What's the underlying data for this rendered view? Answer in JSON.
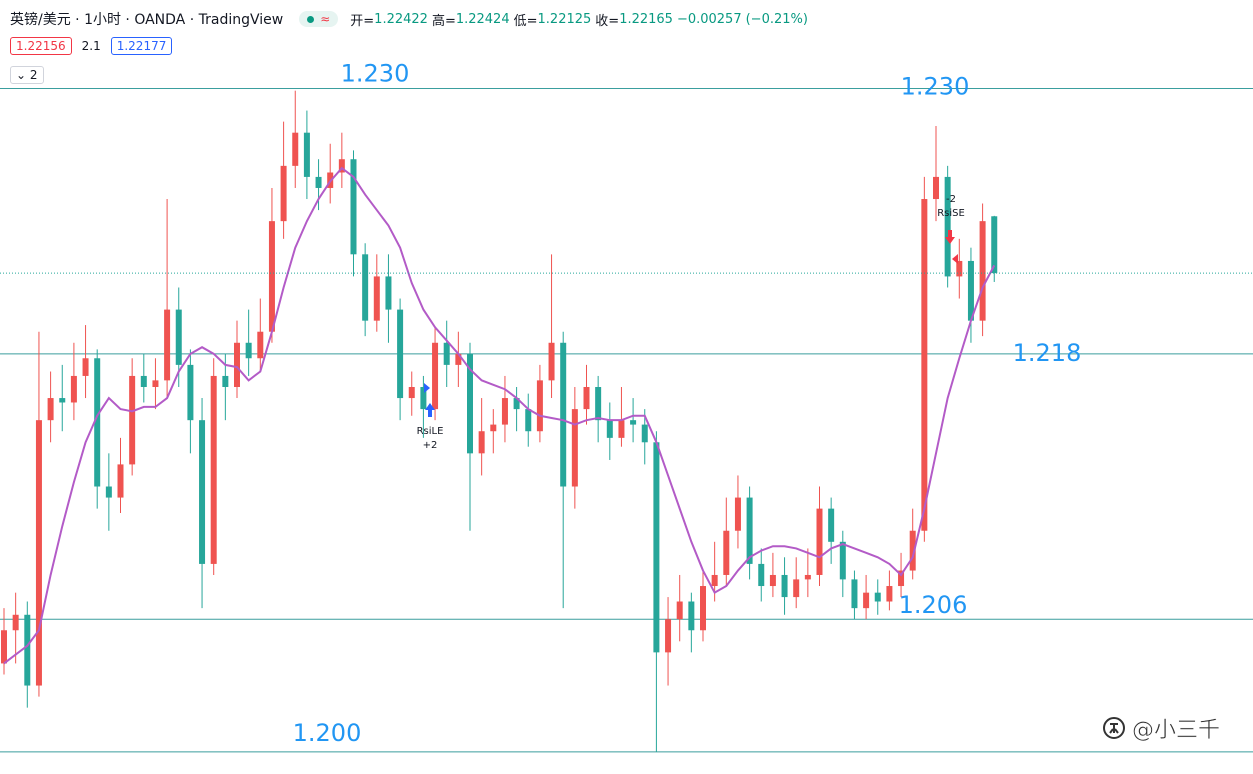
{
  "header": {
    "title": "英镑/美元 · 1小时 · OANDA · TradingView",
    "badge": "≈",
    "ohlc_labels": [
      "开=",
      "高=",
      "低=",
      "收="
    ],
    "change": {
      "value": -0.00257,
      "label": "−0.00257"
    },
    "change_pct": {
      "value": -0.21,
      "label": "(−0.21%)"
    },
    "bid": 1.22156,
    "spread": 2.1,
    "ask": 1.22177,
    "indicator_count": 2
  },
  "watermark": "@小三千",
  "chart_data": {
    "type": "candlestick",
    "up_color": "#ef5350",
    "down_color": "#26a69a",
    "ylim": [
      1.199,
      1.234
    ],
    "open": [
      1.204,
      1.2055,
      1.2062,
      1.203,
      1.215,
      1.216,
      1.2158,
      1.217,
      1.2178,
      1.212,
      1.2115,
      1.213,
      1.217,
      1.2165,
      1.2168,
      1.22,
      1.2175,
      1.215,
      1.2085,
      1.217,
      1.2165,
      1.2185,
      1.2178,
      1.219,
      1.224,
      1.2265,
      1.228,
      1.226,
      1.2255,
      1.2262,
      1.2268,
      1.2225,
      1.2195,
      1.2215,
      1.22,
      1.216,
      1.2165,
      1.2155,
      1.2185,
      1.2175,
      1.218,
      1.2135,
      1.2145,
      1.2148,
      1.216,
      1.2155,
      1.2145,
      1.2168,
      1.2185,
      1.212,
      1.2155,
      1.2165,
      1.215,
      1.2142,
      1.215,
      1.2148,
      1.214,
      1.2045,
      1.206,
      1.2068,
      1.2055,
      1.2075,
      1.208,
      1.21,
      1.2115,
      1.2085,
      1.2075,
      1.208,
      1.207,
      1.2078,
      1.208,
      1.211,
      1.2095,
      1.2078,
      1.2065,
      1.2072,
      1.2068,
      1.2075,
      1.2082,
      1.21,
      1.225,
      1.226,
      1.2215,
      1.2222,
      1.2195,
      1.22422
    ],
    "high": [
      1.2065,
      1.2072,
      1.2068,
      1.219,
      1.2172,
      1.2175,
      1.2185,
      1.2193,
      1.2182,
      1.2135,
      1.2142,
      1.2178,
      1.218,
      1.2178,
      1.225,
      1.221,
      1.2182,
      1.216,
      1.2178,
      1.218,
      1.2195,
      1.22,
      1.2205,
      1.2255,
      1.2285,
      1.2299,
      1.229,
      1.2268,
      1.2275,
      1.228,
      1.2272,
      1.223,
      1.2225,
      1.2225,
      1.2205,
      1.2172,
      1.217,
      1.2192,
      1.2195,
      1.219,
      1.2185,
      1.216,
      1.2155,
      1.217,
      1.2165,
      1.2162,
      1.2175,
      1.2225,
      1.219,
      1.2165,
      1.2175,
      1.217,
      1.2158,
      1.2165,
      1.216,
      1.2155,
      1.2145,
      1.207,
      1.208,
      1.2072,
      1.2082,
      1.2095,
      1.2115,
      1.2125,
      1.212,
      1.2092,
      1.209,
      1.2088,
      1.2088,
      1.2092,
      1.212,
      1.2115,
      1.21,
      1.2082,
      1.208,
      1.2078,
      1.2082,
      1.209,
      1.211,
      1.226,
      1.2283,
      1.2265,
      1.2232,
      1.2228,
      1.2248,
      1.22424
    ],
    "low": [
      1.2035,
      1.204,
      1.202,
      1.2025,
      1.214,
      1.2145,
      1.215,
      1.216,
      1.211,
      1.21,
      1.2108,
      1.2125,
      1.2158,
      1.2155,
      1.216,
      1.2165,
      1.2135,
      1.2065,
      1.208,
      1.215,
      1.216,
      1.217,
      1.2172,
      1.2185,
      1.2232,
      1.2255,
      1.225,
      1.2245,
      1.2248,
      1.2255,
      1.2215,
      1.2188,
      1.219,
      1.2185,
      1.215,
      1.2152,
      1.2142,
      1.215,
      1.2165,
      1.2165,
      1.21,
      1.2125,
      1.2135,
      1.214,
      1.2145,
      1.2138,
      1.214,
      1.216,
      1.2065,
      1.211,
      1.2148,
      1.214,
      1.2132,
      1.2138,
      1.214,
      1.213,
      1.2,
      1.203,
      1.205,
      1.2045,
      1.205,
      1.2068,
      1.2075,
      1.2092,
      1.2078,
      1.2068,
      1.207,
      1.2062,
      1.2065,
      1.207,
      1.2075,
      1.2085,
      1.207,
      1.206,
      1.206,
      1.2062,
      1.2064,
      1.207,
      1.2078,
      1.2095,
      1.224,
      1.221,
      1.2205,
      1.2185,
      1.2188,
      1.22125
    ],
    "close": [
      1.2055,
      1.2062,
      1.203,
      1.215,
      1.216,
      1.2158,
      1.217,
      1.2178,
      1.212,
      1.2115,
      1.213,
      1.217,
      1.2165,
      1.2168,
      1.22,
      1.2175,
      1.215,
      1.2085,
      1.217,
      1.2165,
      1.2185,
      1.2178,
      1.219,
      1.224,
      1.2265,
      1.228,
      1.226,
      1.2255,
      1.2262,
      1.2268,
      1.2225,
      1.2195,
      1.2215,
      1.22,
      1.216,
      1.2165,
      1.2155,
      1.2185,
      1.2175,
      1.218,
      1.2135,
      1.2145,
      1.2148,
      1.216,
      1.2155,
      1.2145,
      1.2168,
      1.2185,
      1.212,
      1.2155,
      1.2165,
      1.215,
      1.2142,
      1.215,
      1.2148,
      1.214,
      1.2045,
      1.206,
      1.2068,
      1.2055,
      1.2075,
      1.208,
      1.21,
      1.2115,
      1.2085,
      1.2075,
      1.208,
      1.207,
      1.2078,
      1.208,
      1.211,
      1.2095,
      1.2078,
      1.2065,
      1.2072,
      1.2068,
      1.2075,
      1.2082,
      1.21,
      1.225,
      1.226,
      1.2215,
      1.2222,
      1.2195,
      1.224,
      1.22165
    ],
    "ma": {
      "color": "#b35bc7",
      "values": [
        1.204,
        1.2044,
        1.2048,
        1.2055,
        1.208,
        1.2102,
        1.2122,
        1.214,
        1.2152,
        1.216,
        1.2155,
        1.2154,
        1.2156,
        1.2156,
        1.216,
        1.2172,
        1.218,
        1.2183,
        1.218,
        1.2175,
        1.2174,
        1.2168,
        1.2172,
        1.219,
        1.221,
        1.2228,
        1.224,
        1.225,
        1.2258,
        1.2264,
        1.226,
        1.2252,
        1.2245,
        1.2238,
        1.2228,
        1.2212,
        1.22,
        1.2192,
        1.2186,
        1.218,
        1.2173,
        1.2168,
        1.2166,
        1.2164,
        1.216,
        1.2155,
        1.2152,
        1.2151,
        1.215,
        1.2148,
        1.215,
        1.2151,
        1.215,
        1.215,
        1.2152,
        1.2152,
        1.214,
        1.2125,
        1.211,
        1.2095,
        1.2082,
        1.2072,
        1.2075,
        1.2082,
        1.2088,
        1.2091,
        1.2093,
        1.2093,
        1.2092,
        1.209,
        1.2088,
        1.2092,
        1.2094,
        1.2092,
        1.209,
        1.2088,
        1.2085,
        1.208,
        1.2088,
        1.211,
        1.2135,
        1.216,
        1.2178,
        1.2195,
        1.221,
        1.222
      ]
    },
    "levels": [
      {
        "value": 1.23,
        "label": "1.230"
      },
      {
        "value": 1.218,
        "label": "1.218"
      },
      {
        "value": 1.206,
        "label": "1.206"
      },
      {
        "value": 1.2,
        "label": "1.200"
      }
    ],
    "level_color": "#3a9e9e",
    "label_color": "#2196f3",
    "last_price_color": "#26a69a",
    "signals": [
      {
        "name": "RsiLE",
        "qty": "+2",
        "color": "#2962ff"
      },
      {
        "name": "RsiSE",
        "qty": "-2",
        "color": "#f23645"
      }
    ]
  }
}
